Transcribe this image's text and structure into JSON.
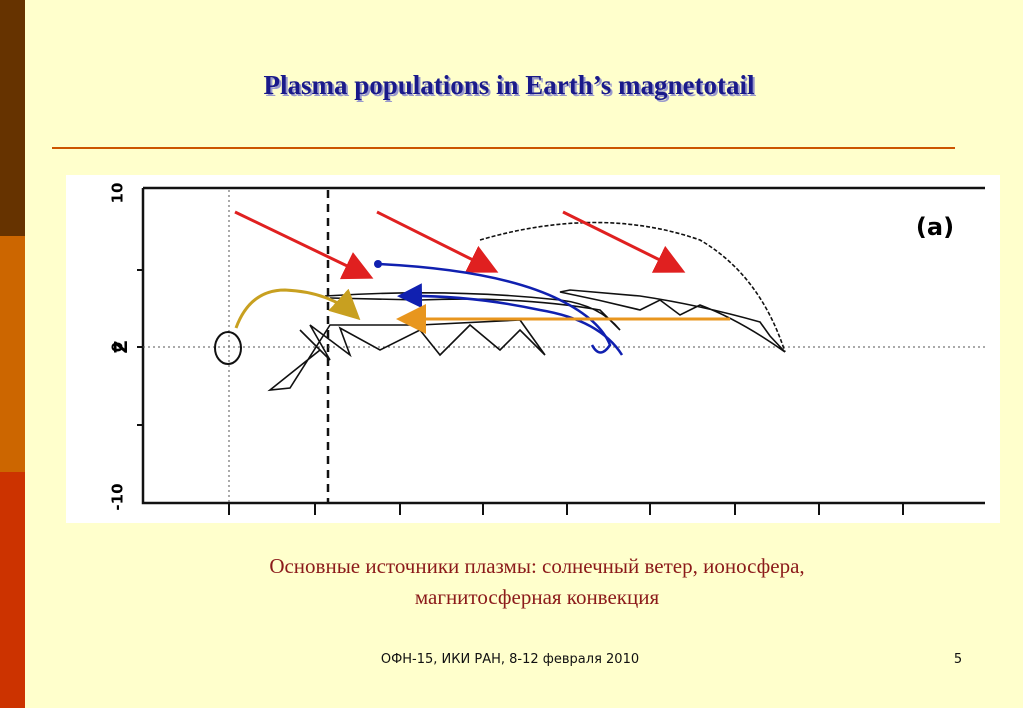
{
  "slide": {
    "title": "Plasma populations in Earth’s magnetotail",
    "figure": {
      "panel_label": "(a)",
      "axis_label": "Z",
      "tick_labels": [
        "10",
        "0",
        "-10"
      ]
    },
    "caption": [
      "Основные источники плазмы: солнечный ветер, ионосфера,",
      "магнитосферная конвекция"
    ],
    "footer": "ОФН-15, ИКИ РАН, 8-12 февраля 2010",
    "page_number": "5"
  }
}
